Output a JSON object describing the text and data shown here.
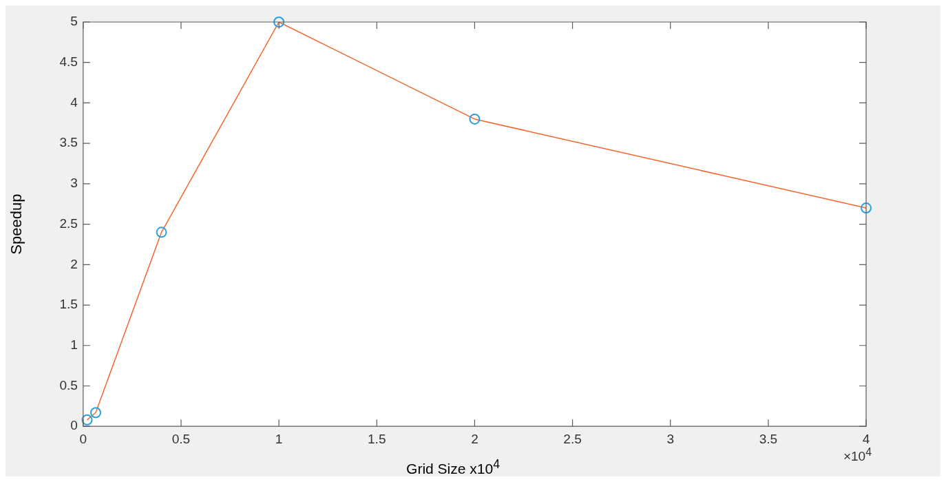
{
  "chart_data": {
    "type": "line",
    "xlabel": "Grid Size x10$^{4}$",
    "ylabel": "Speedup",
    "x": [
      0.02,
      0.064,
      0.4,
      1,
      2,
      4
    ],
    "series": [
      {
        "type": "line",
        "color": "#f4642a",
        "marker": "none",
        "values": [
          0.08,
          0.17,
          2.4,
          5,
          3.8,
          2.7
        ]
      },
      {
        "type": "scatter",
        "color": "#2a9fe0",
        "marker": "circle",
        "values": [
          0.08,
          0.17,
          2.4,
          5,
          3.8,
          2.7
        ]
      }
    ],
    "xlim": [
      0,
      4
    ],
    "xticks": [
      0,
      0.5,
      1,
      1.5,
      2,
      2.5,
      3,
      3.5,
      4
    ],
    "ylim": [
      0,
      5
    ],
    "yticks": [
      0,
      0.5,
      1,
      1.5,
      2,
      2.5,
      3,
      3.5,
      4,
      4.5,
      5
    ],
    "grid": false,
    "legend": false,
    "annotations": [
      "×10$^{4}$"
    ]
  }
}
